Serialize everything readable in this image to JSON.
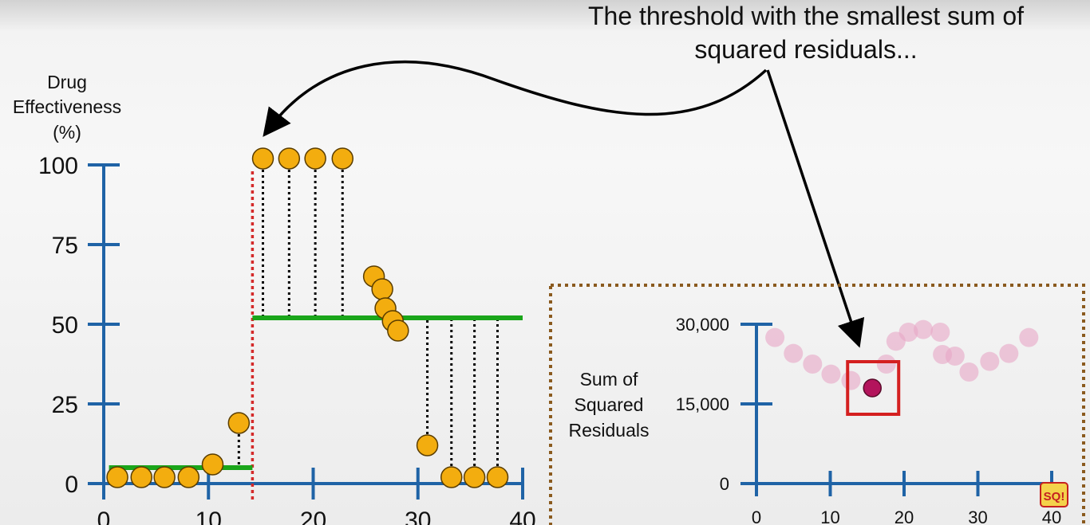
{
  "annotation": {
    "line1": "The threshold with the smallest sum of",
    "line2": "squared residuals..."
  },
  "colors": {
    "axis": "#1f63a6",
    "points": "#f3ad0f",
    "point_stroke": "#5a3d00",
    "prediction_line": "#1aa51a",
    "threshold": "#d42a2a",
    "residual": "#000000",
    "ssr_points": "#e8a7c6",
    "ssr_highlight": "#b3145c",
    "highlight_box": "#d42020",
    "panel_border": "#8a5a1e"
  },
  "chart_data": [
    {
      "type": "scatter",
      "ylabel_lines": [
        "Drug",
        "Effectiveness",
        "(%)"
      ],
      "xlabel": "",
      "ylim": [
        0,
        100
      ],
      "xlim": [
        0,
        40
      ],
      "yticks": [
        0,
        25,
        50,
        75,
        100
      ],
      "ytick_labels": [
        "0",
        "25",
        "50",
        "75",
        "100"
      ],
      "xticks": [
        0,
        10,
        20,
        30,
        40
      ],
      "xtick_labels": [
        "0",
        "10",
        "20",
        "30",
        "40"
      ],
      "points": [
        {
          "x": 1.3,
          "y": 2
        },
        {
          "x": 3.6,
          "y": 2
        },
        {
          "x": 5.8,
          "y": 2
        },
        {
          "x": 8.1,
          "y": 2
        },
        {
          "x": 10.4,
          "y": 6
        },
        {
          "x": 12.9,
          "y": 19
        },
        {
          "x": 15.2,
          "y": 102
        },
        {
          "x": 17.7,
          "y": 102
        },
        {
          "x": 20.2,
          "y": 102
        },
        {
          "x": 22.8,
          "y": 102
        },
        {
          "x": 25.8,
          "y": 65
        },
        {
          "x": 26.6,
          "y": 61
        },
        {
          "x": 26.9,
          "y": 55
        },
        {
          "x": 27.6,
          "y": 51
        },
        {
          "x": 28.1,
          "y": 48
        },
        {
          "x": 30.9,
          "y": 12
        },
        {
          "x": 33.2,
          "y": 2
        },
        {
          "x": 35.4,
          "y": 2
        },
        {
          "x": 37.6,
          "y": 2
        }
      ],
      "threshold": 14.2,
      "left_mean": 5,
      "right_mean": 52,
      "residual_points": [
        5,
        6,
        7,
        8,
        9,
        15,
        16,
        17,
        18
      ]
    },
    {
      "type": "scatter",
      "ylabel_lines": [
        "Sum of",
        "Squared",
        "Residuals"
      ],
      "xlabel": "",
      "ylim": [
        0,
        30000
      ],
      "xlim": [
        0,
        40
      ],
      "yticks": [
        0,
        15000,
        30000
      ],
      "ytick_labels": [
        "0",
        "15,000",
        "30,000"
      ],
      "xticks": [
        0,
        10,
        20,
        30,
        40
      ],
      "xtick_labels": [
        "0",
        "10",
        "20",
        "30",
        "40"
      ],
      "points": [
        {
          "x": 2.5,
          "y": 27500
        },
        {
          "x": 5.0,
          "y": 24500
        },
        {
          "x": 7.6,
          "y": 22500
        },
        {
          "x": 10.1,
          "y": 20600
        },
        {
          "x": 12.8,
          "y": 19400
        },
        {
          "x": 15.7,
          "y": 18000
        },
        {
          "x": 17.6,
          "y": 22500
        },
        {
          "x": 18.9,
          "y": 26800
        },
        {
          "x": 20.6,
          "y": 28500
        },
        {
          "x": 22.6,
          "y": 29000
        },
        {
          "x": 24.9,
          "y": 28500
        },
        {
          "x": 25.2,
          "y": 24300
        },
        {
          "x": 26.9,
          "y": 24000
        },
        {
          "x": 28.8,
          "y": 21000
        },
        {
          "x": 31.6,
          "y": 23000
        },
        {
          "x": 34.2,
          "y": 24500
        },
        {
          "x": 36.9,
          "y": 27500
        }
      ],
      "highlight_index": 5
    }
  ],
  "watermark": "SQ!"
}
